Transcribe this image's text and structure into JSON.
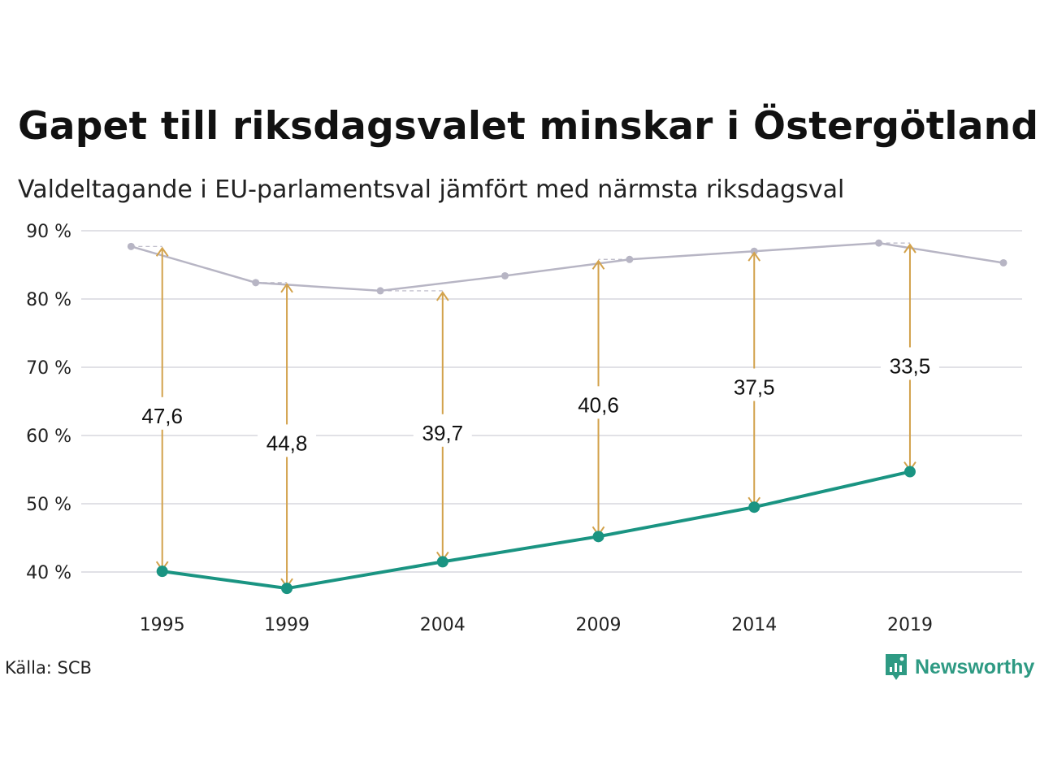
{
  "title": "Gapet till riksdagsvalet minskar i Östergötland",
  "subtitle": "Valdeltagande i EU-parlamentsval jämfört med närmsta riksdagsval",
  "source": "Källa: SCB",
  "brand": "Newsworthy",
  "colors": {
    "eu": "#1a9482",
    "riksdag": "#b7b5c4",
    "gap": "#d2a24c",
    "grid": "#e1e1e6",
    "brand": "#2e9a83"
  },
  "chart_data": {
    "type": "line",
    "title": "Gapet till riksdagsvalet minskar i Östergötland",
    "subtitle": "Valdeltagande i EU-parlamentsval jämfört med närmsta riksdagsval",
    "ylim": [
      35,
      90
    ],
    "xlim": [
      1992.4,
      2022.6
    ],
    "yticks": [
      90,
      80,
      70,
      60,
      50,
      40
    ],
    "ytick_labels": [
      "90 %",
      "80 %",
      "70 %",
      "60 %",
      "50 %",
      "40 %"
    ],
    "xticks": [
      1995,
      1999,
      2004,
      2009,
      2014,
      2019
    ],
    "xtick_labels": [
      "1995",
      "1999",
      "2004",
      "2009",
      "2014",
      "2019"
    ],
    "grid": true,
    "series": [
      {
        "key": "riksdag",
        "x": [
          1994,
          1998,
          2002,
          2006,
          2010,
          2014,
          2018,
          2022
        ],
        "values": [
          87.7,
          82.4,
          81.2,
          83.4,
          85.8,
          87.0,
          88.2,
          85.3
        ]
      },
      {
        "key": "eu",
        "x": [
          1995,
          1999,
          2004,
          2009,
          2014,
          2019
        ],
        "values": [
          40.1,
          37.6,
          41.5,
          45.2,
          49.5,
          54.7
        ]
      }
    ],
    "gaps": [
      {
        "x": 1995,
        "from": 40.1,
        "to": 87.7,
        "label": "47,6",
        "label_y": 63.0
      },
      {
        "x": 1999,
        "from": 37.6,
        "to": 82.4,
        "label": "44,8",
        "label_y": 59.0
      },
      {
        "x": 2004,
        "from": 41.5,
        "to": 81.2,
        "label": "39,7",
        "label_y": 60.5
      },
      {
        "x": 2009,
        "from": 45.2,
        "to": 85.8,
        "label": "40,6",
        "label_y": 64.6
      },
      {
        "x": 2014,
        "from": 49.5,
        "to": 87.0,
        "label": "37,5",
        "label_y": 67.2
      },
      {
        "x": 2019,
        "from": 54.7,
        "to": 88.2,
        "label": "33,5",
        "label_y": 70.3
      }
    ]
  }
}
